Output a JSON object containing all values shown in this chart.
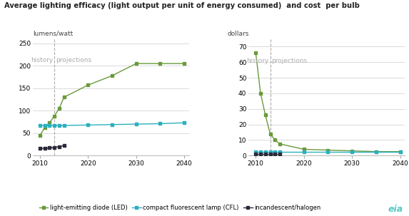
{
  "title": "Average lighting efficacy (light output per unit of energy consumed)  and cost  per bulb",
  "left_ylabel": "lumens/watt",
  "right_ylabel": "dollars",
  "history_label": "history",
  "projections_label": "projections",
  "divider_year": 2013,
  "colors": {
    "LED": "#6a9a3a",
    "CFL": "#2ab0c0",
    "incandescent": "#2a2a3a",
    "dashed_line": "#aaaaaa",
    "history_text": "#aaaaaa",
    "projections_text": "#aaaaaa",
    "grid": "#cccccc",
    "axis_text": "#444444"
  },
  "efficacy": {
    "LED": {
      "years": [
        2010,
        2011,
        2012,
        2013,
        2014,
        2015,
        2020,
        2025,
        2030,
        2035,
        2040
      ],
      "values": [
        45,
        62,
        73,
        88,
        105,
        130,
        157,
        178,
        205,
        205,
        205
      ]
    },
    "CFL": {
      "years": [
        2010,
        2011,
        2012,
        2013,
        2014,
        2015,
        2020,
        2025,
        2030,
        2035,
        2040
      ],
      "values": [
        67,
        67,
        67,
        67,
        67,
        67,
        68,
        69,
        70,
        71,
        73
      ]
    },
    "incandescent": {
      "years": [
        2010,
        2011,
        2012,
        2013,
        2014,
        2015
      ],
      "values": [
        16,
        16,
        17,
        18,
        20,
        22
      ]
    }
  },
  "cost": {
    "LED": {
      "years": [
        2010,
        2011,
        2012,
        2013,
        2014,
        2015,
        2020,
        2025,
        2030,
        2035,
        2040
      ],
      "values": [
        66,
        40,
        26,
        14,
        10,
        7.5,
        4,
        3.5,
        3,
        2.5,
        2.5
      ]
    },
    "CFL": {
      "years": [
        2010,
        2011,
        2012,
        2013,
        2014,
        2015,
        2020,
        2025,
        2030,
        2035,
        2040
      ],
      "values": [
        2.5,
        2.5,
        2.5,
        2.5,
        2.5,
        2.5,
        2.5,
        2.5,
        2.5,
        2.5,
        2.5
      ]
    },
    "incandescent": {
      "years": [
        2010,
        2011,
        2012,
        2013,
        2014,
        2015
      ],
      "values": [
        1.1,
        1.1,
        1.1,
        1.1,
        1.1,
        1.1
      ]
    }
  },
  "left_ylim": [
    0,
    260
  ],
  "left_yticks": [
    0,
    50,
    100,
    150,
    200,
    250
  ],
  "right_ylim": [
    0,
    75
  ],
  "right_yticks": [
    0,
    10,
    20,
    30,
    40,
    50,
    60,
    70
  ],
  "xlim": [
    2008.5,
    2041
  ],
  "xticks": [
    2010,
    2020,
    2030,
    2040
  ],
  "legend": {
    "LED_label": "light-emitting diode (LED)",
    "CFL_label": "compact fluorescent lamp (CFL)",
    "inc_label": "incandescent/halogen"
  },
  "background_color": "#ffffff",
  "eia_logo_color": "#5bc8c8"
}
